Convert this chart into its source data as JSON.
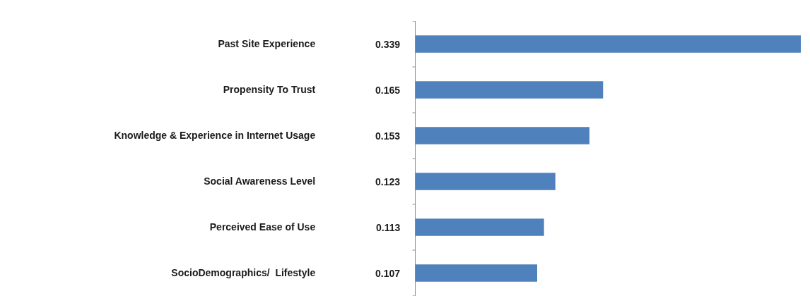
{
  "chart_data": {
    "type": "bar",
    "orientation": "horizontal",
    "categories": [
      "Past Site Experience",
      "Propensity To Trust",
      "Knowledge & Experience in Internet Usage",
      "Social Awareness Level",
      "Perceived Ease of Use",
      "SocioDemographics/  Lifestyle"
    ],
    "values": [
      0.339,
      0.165,
      0.153,
      0.123,
      0.113,
      0.107
    ],
    "color": "#4f81bd",
    "data_labels": true
  }
}
